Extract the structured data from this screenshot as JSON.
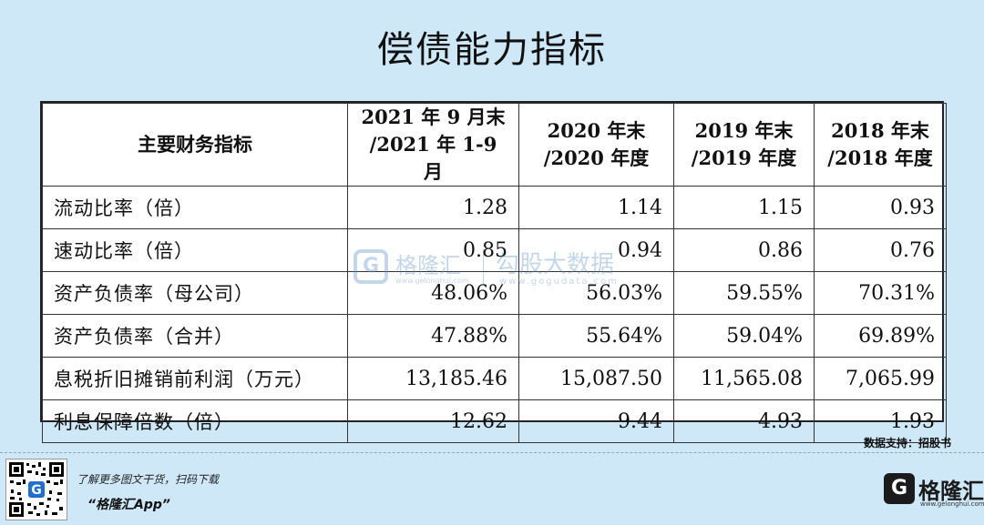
{
  "title": "偿债能力指标",
  "table": {
    "headers": [
      {
        "line1": "主要财务指标",
        "line2": ""
      },
      {
        "line1": "2021 年 9 月末",
        "line2": "/2021 年 1-9 月"
      },
      {
        "line1": "2020 年末",
        "line2": "/2020 年度"
      },
      {
        "line1": "2019 年末",
        "line2": "/2019 年度"
      },
      {
        "line1": "2018 年末",
        "line2": "/2018 年度"
      }
    ],
    "rows": [
      {
        "label": "流动比率（倍）",
        "values": [
          "1.28",
          "1.14",
          "1.15",
          "0.93"
        ]
      },
      {
        "label": "速动比率（倍）",
        "values": [
          "0.85",
          "0.94",
          "0.86",
          "0.76"
        ]
      },
      {
        "label": "资产负债率（母公司）",
        "values": [
          "48.06%",
          "56.03%",
          "59.55%",
          "70.31%"
        ]
      },
      {
        "label": "资产负债率（合并）",
        "values": [
          "47.88%",
          "55.64%",
          "59.04%",
          "69.89%"
        ]
      },
      {
        "label": "息税折旧摊销前利润（万元）",
        "values": [
          "13,185.46",
          "15,087.50",
          "11,565.08",
          "7,065.99"
        ]
      },
      {
        "label": "利息保障倍数（倍）",
        "values": [
          "12.62",
          "9.44",
          "4.93",
          "1.93"
        ]
      }
    ]
  },
  "watermark": {
    "logo_glyph": "G",
    "brand": "格隆汇",
    "brand_url": "www.gelonghui.com",
    "site": "勾股大数据",
    "site_url": "www.gogudata.com"
  },
  "source": "数据支持：招股书",
  "footer": {
    "promo_line1": "了解更多图文干货，扫码下载",
    "promo_line2": "“格隆汇App”",
    "brand_glyph": "G",
    "brand_name": "格隆汇",
    "brand_url": "www.gelonghui.com",
    "qr_icon": "qr-code-icon"
  },
  "colors": {
    "background": "#cfe8f8",
    "watermark": "#5a8fc4"
  }
}
